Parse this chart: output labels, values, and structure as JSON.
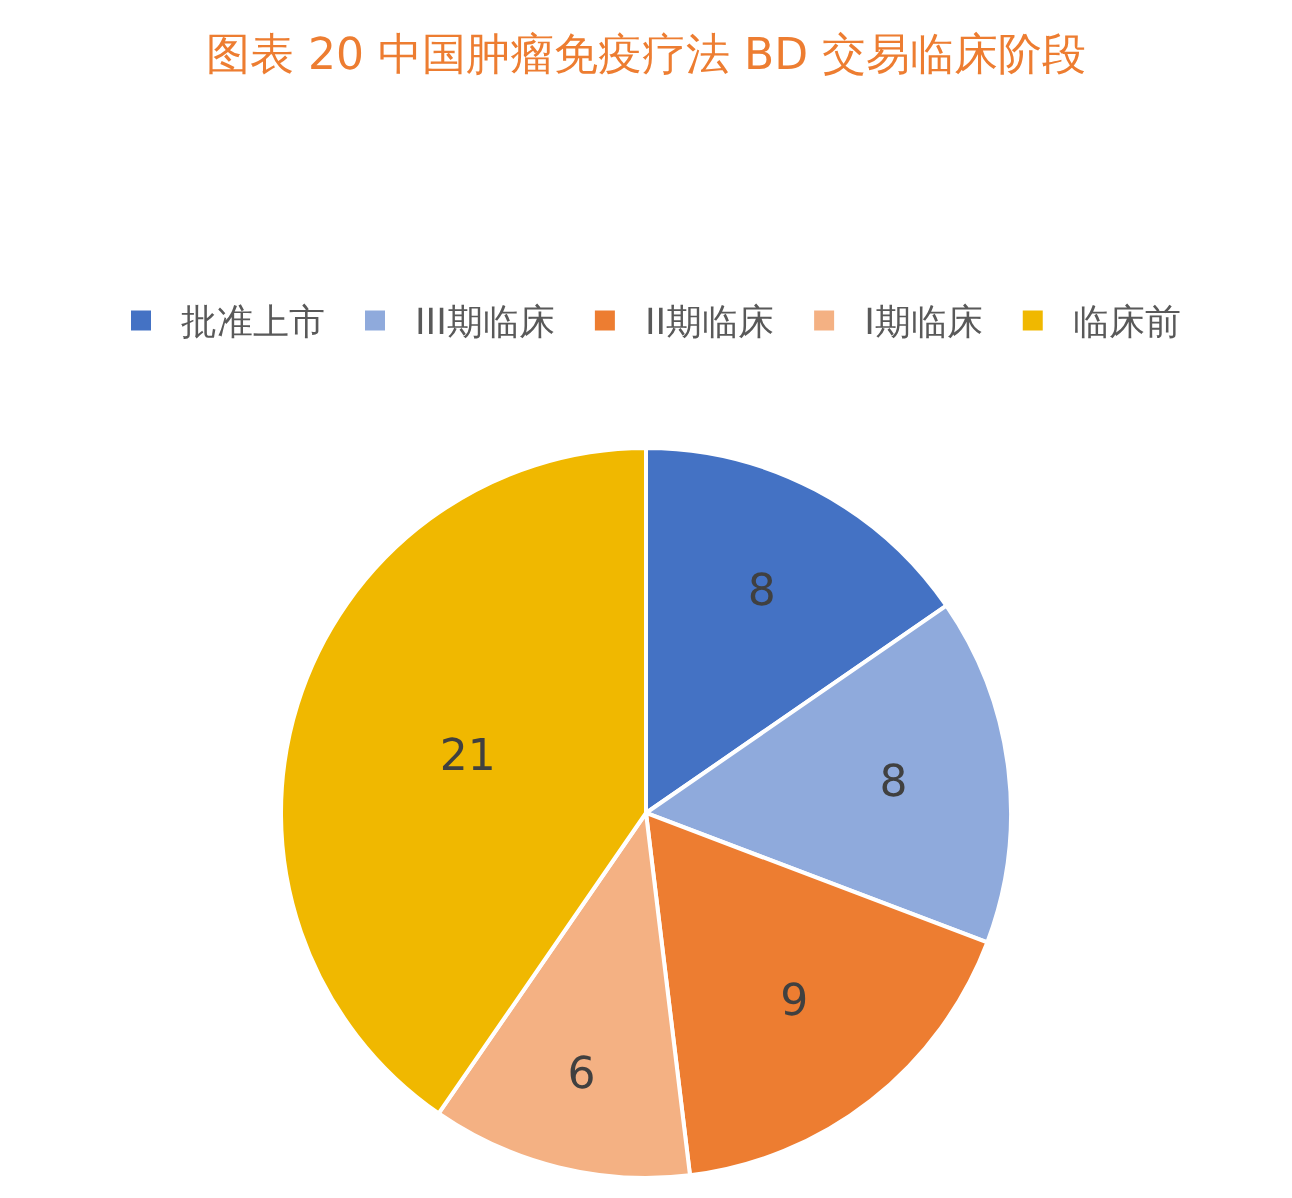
{
  "chart_data": {
    "type": "pie",
    "title": "图表 20 中国肿瘤免疫疗法 BD 交易临床阶段",
    "categories": [
      "批准上市",
      "III期临床",
      "II期临床",
      "I期临床",
      "临床前"
    ],
    "values": [
      8,
      8,
      9,
      6,
      21
    ],
    "colors": [
      "#4472c4",
      "#8faadc",
      "#ed7d31",
      "#f4b183",
      "#f0b800"
    ],
    "data_labels": true,
    "legend": "top"
  }
}
